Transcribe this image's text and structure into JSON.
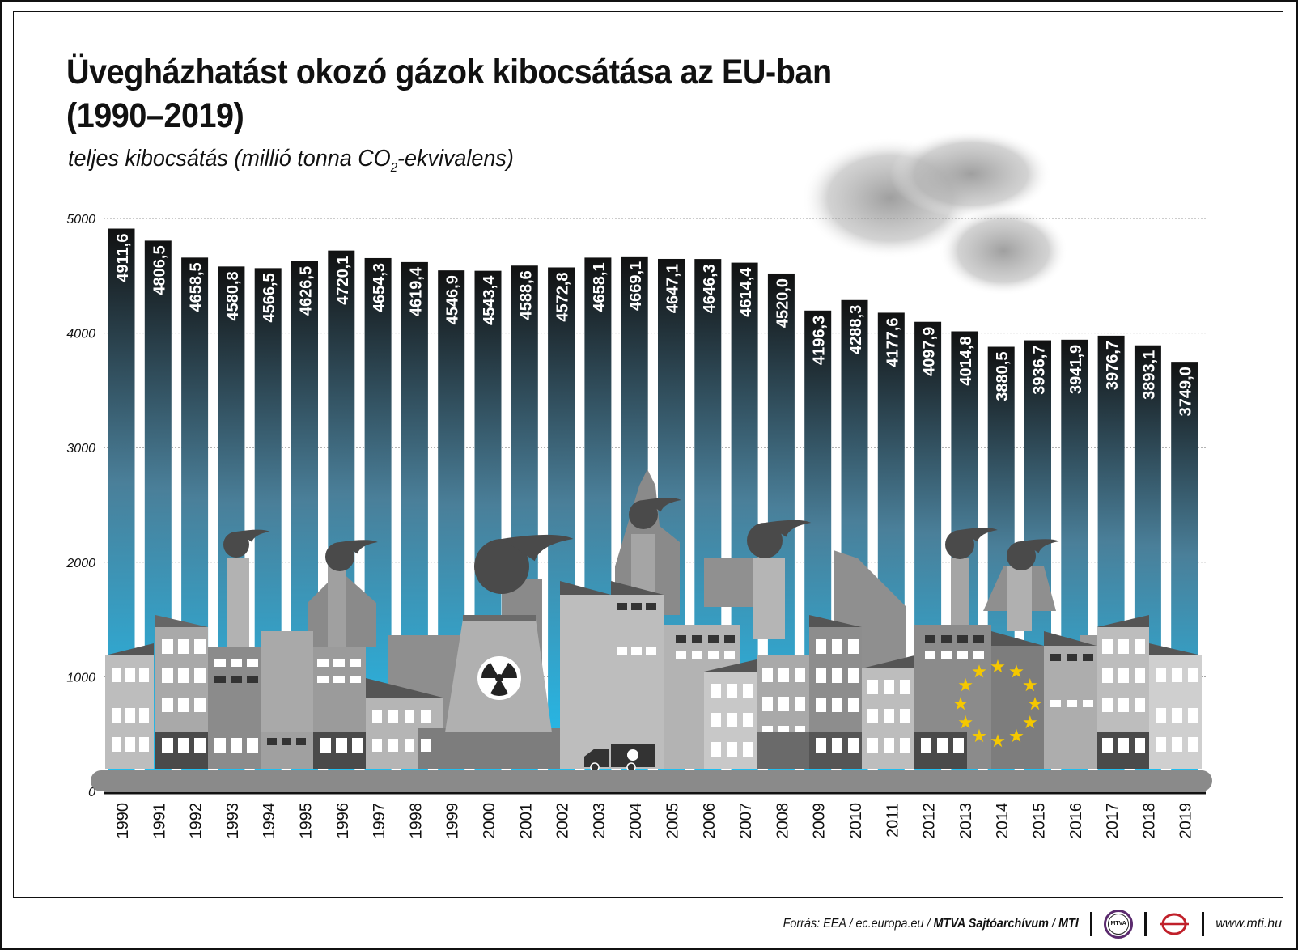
{
  "title_line1": "Üvegházhatást okozó gázok kibocsátása az EU-ban",
  "title_line2": "(1990–2019)",
  "subtitle_pre": "teljes kibocsátás (millió tonna CO",
  "subtitle_sub": "2",
  "subtitle_post": "-ekvivalens)",
  "footer": {
    "source_italic": "Forrás: EEA / ec.europa.eu / ",
    "source_bold1": "MTVA Sajtóarchívum",
    "source_mid": " / ",
    "source_bold2": "MTI",
    "logo_mtva": "MTVA",
    "url": "www.mti.hu"
  },
  "colors": {
    "bar_top": "#111111",
    "bar_bottom": "#1ec4f7",
    "label": "#ffffff",
    "city": "#8a8a8a",
    "eu_star": "#f5c800"
  },
  "chart_data": {
    "type": "bar",
    "categories": [
      "1990",
      "1991",
      "1992",
      "1993",
      "1994",
      "1995",
      "1996",
      "1997",
      "1998",
      "1999",
      "2000",
      "2001",
      "2002",
      "2003",
      "2004",
      "2005",
      "2006",
      "2007",
      "2008",
      "2009",
      "2010",
      "2011",
      "2012",
      "2013",
      "2014",
      "2015",
      "2016",
      "2017",
      "2018",
      "2019"
    ],
    "values": [
      4911.6,
      4806.5,
      4658.5,
      4580.8,
      4566.5,
      4626.5,
      4720.1,
      4654.3,
      4619.4,
      4546.9,
      4543.4,
      4588.6,
      4572.8,
      4658.1,
      4669.1,
      4647.1,
      4646.3,
      4614.4,
      4520.0,
      4196.3,
      4288.3,
      4177.6,
      4097.9,
      4014.8,
      3880.5,
      3936.7,
      3941.9,
      3976.7,
      3893.1,
      3749.0
    ],
    "value_labels": [
      "4911,6",
      "4806,5",
      "4658,5",
      "4580,8",
      "4566,5",
      "4626,5",
      "4720,1",
      "4654,3",
      "4619,4",
      "4546,9",
      "4543,4",
      "4588,6",
      "4572,8",
      "4658,1",
      "4669,1",
      "4647,1",
      "4646,3",
      "4614,4",
      "4520,0",
      "4196,3",
      "4288,3",
      "4177,6",
      "4097,9",
      "4014,8",
      "3880,5",
      "3936,7",
      "3941,9",
      "3976,7",
      "3893,1",
      "3749,0"
    ],
    "yticks": [
      0,
      1000,
      2000,
      3000,
      4000,
      5000
    ],
    "ylim": [
      0,
      5000
    ],
    "grid": true,
    "xlabel": "",
    "ylabel": ""
  }
}
